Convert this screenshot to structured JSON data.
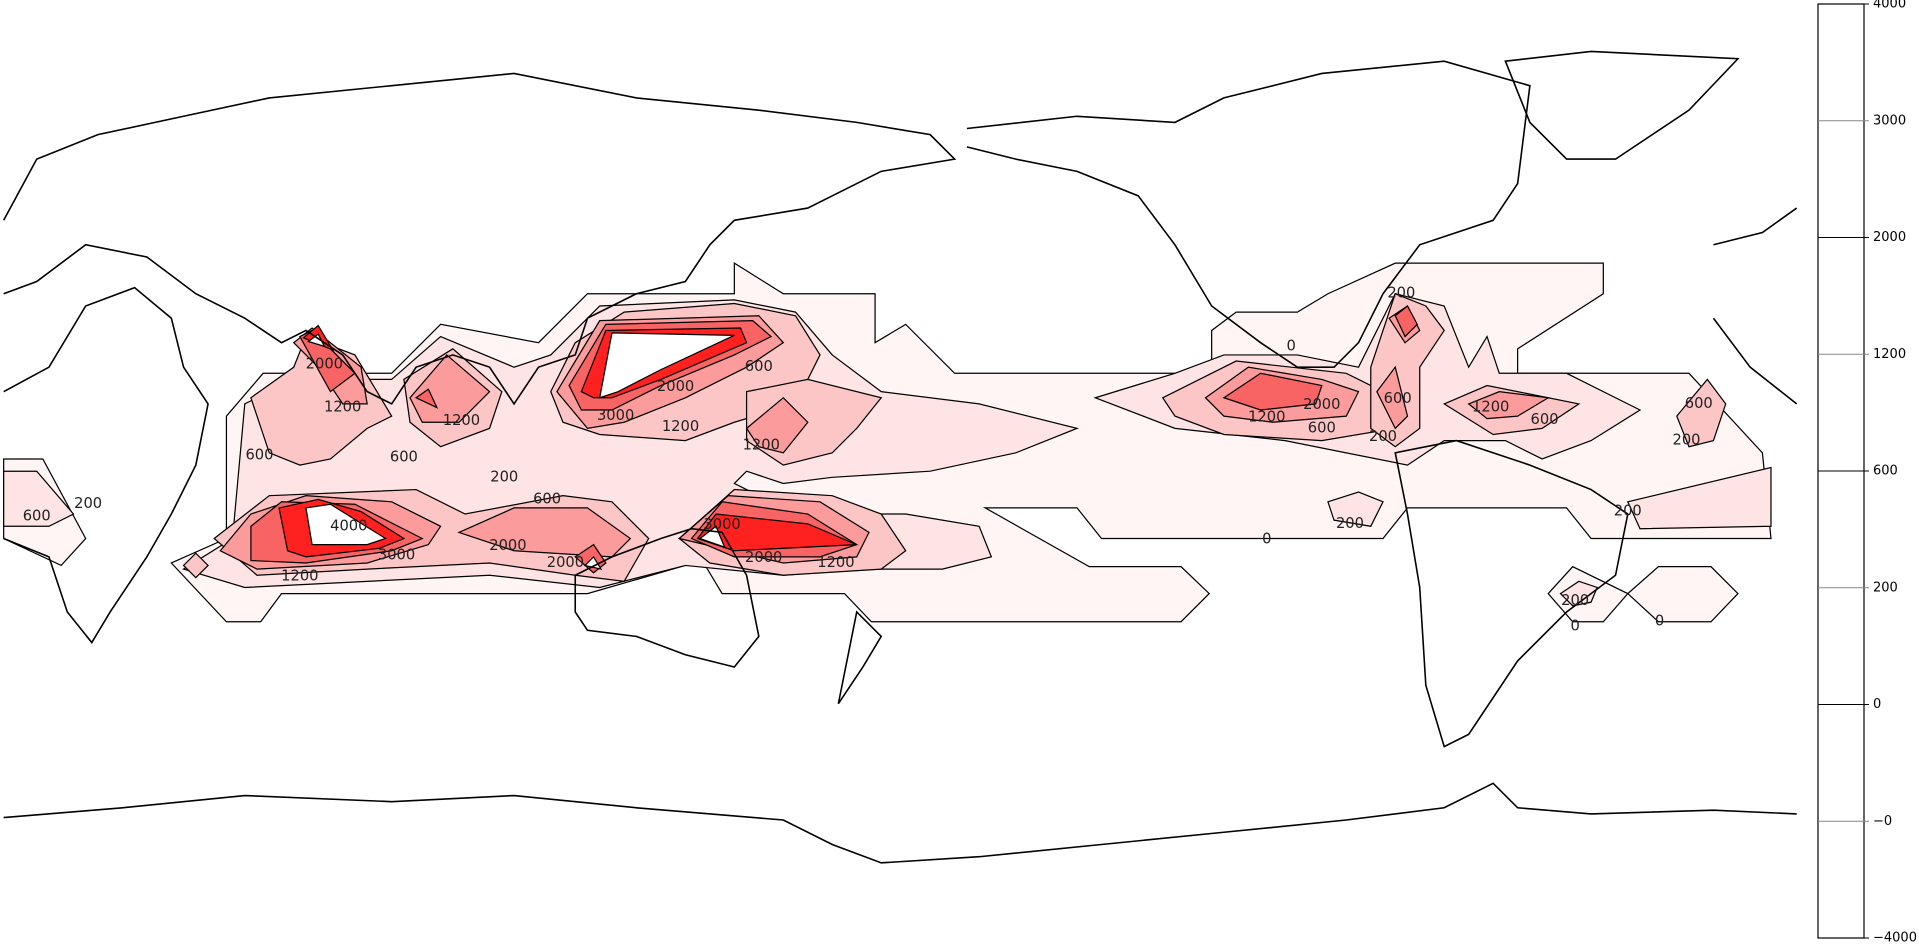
{
  "chart_data": {
    "type": "contour",
    "projection": "equirectangular world map with coastlines",
    "levels": [
      0,
      200,
      600,
      1200,
      2000,
      3000,
      4000
    ],
    "level_colors": [
      "#fff5f5",
      "#fee4e4",
      "#fcc6c6",
      "#fb9b9b",
      "#f86464",
      "#ff2020"
    ],
    "above_top_color": "#ffffff",
    "colorbar": {
      "orientation": "vertical",
      "position": "right",
      "tick_labels": [
        "4000",
        "3000",
        "2000",
        "1200",
        "600",
        "200",
        "0",
        "−0",
        "−4000"
      ]
    },
    "contour_labels": [
      "2000",
      "1200",
      "600",
      "600",
      "1200",
      "600",
      "2000",
      "1200",
      "1200",
      "3000",
      "200",
      "600",
      "4000",
      "3000",
      "1200",
      "2000",
      "2000",
      "3000",
      "2000",
      "1200",
      "0",
      "200",
      "1200",
      "600",
      "2000",
      "1200",
      "600",
      "600",
      "200",
      "200",
      "200",
      "0",
      "0",
      "600",
      "200",
      "200",
      "0",
      "200",
      "600"
    ]
  }
}
